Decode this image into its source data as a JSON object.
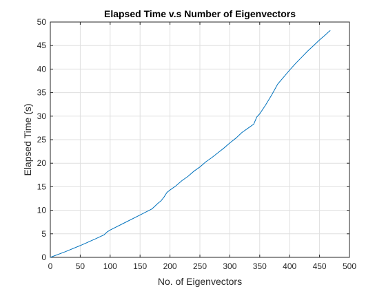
{
  "chart_data": {
    "type": "line",
    "title": "Elapsed Time v.s Number of Eigenvectors",
    "xlabel": "No. of Eigenvectors",
    "ylabel": "Elapsed Time (s)",
    "xlim": [
      0,
      500
    ],
    "ylim": [
      0,
      50
    ],
    "xticks": [
      0,
      50,
      100,
      150,
      200,
      250,
      300,
      350,
      400,
      450,
      500
    ],
    "yticks": [
      0,
      5,
      10,
      15,
      20,
      25,
      30,
      35,
      40,
      45,
      50
    ],
    "xtick_labels": [
      "0",
      "50",
      "100",
      "150",
      "200",
      "250",
      "300",
      "350",
      "400",
      "450",
      "500"
    ],
    "ytick_labels": [
      "0",
      "5",
      "10",
      "15",
      "20",
      "25",
      "30",
      "35",
      "40",
      "45",
      "50"
    ],
    "grid": true,
    "line_color": "#0072BD",
    "series": [
      {
        "x": [
          0,
          25,
          50,
          75,
          90,
          95,
          100,
          125,
          150,
          170,
          180,
          185,
          190,
          195,
          200,
          210,
          220,
          230,
          240,
          250,
          260,
          270,
          280,
          290,
          300,
          310,
          320,
          330,
          340,
          345,
          350,
          360,
          370,
          380,
          390,
          400,
          410,
          420,
          430,
          440,
          450,
          460,
          465,
          468
        ],
        "y": [
          0,
          1.2,
          2.5,
          3.9,
          4.8,
          5.4,
          5.8,
          7.4,
          9.0,
          10.3,
          11.5,
          12.0,
          12.8,
          13.8,
          14.3,
          15.2,
          16.3,
          17.2,
          18.3,
          19.2,
          20.3,
          21.2,
          22.2,
          23.2,
          24.3,
          25.3,
          26.5,
          27.4,
          28.3,
          29.8,
          30.5,
          32.4,
          34.5,
          36.8,
          38.3,
          39.8,
          41.2,
          42.5,
          43.8,
          45.0,
          46.2,
          47.3,
          47.9,
          48.2
        ]
      }
    ]
  }
}
